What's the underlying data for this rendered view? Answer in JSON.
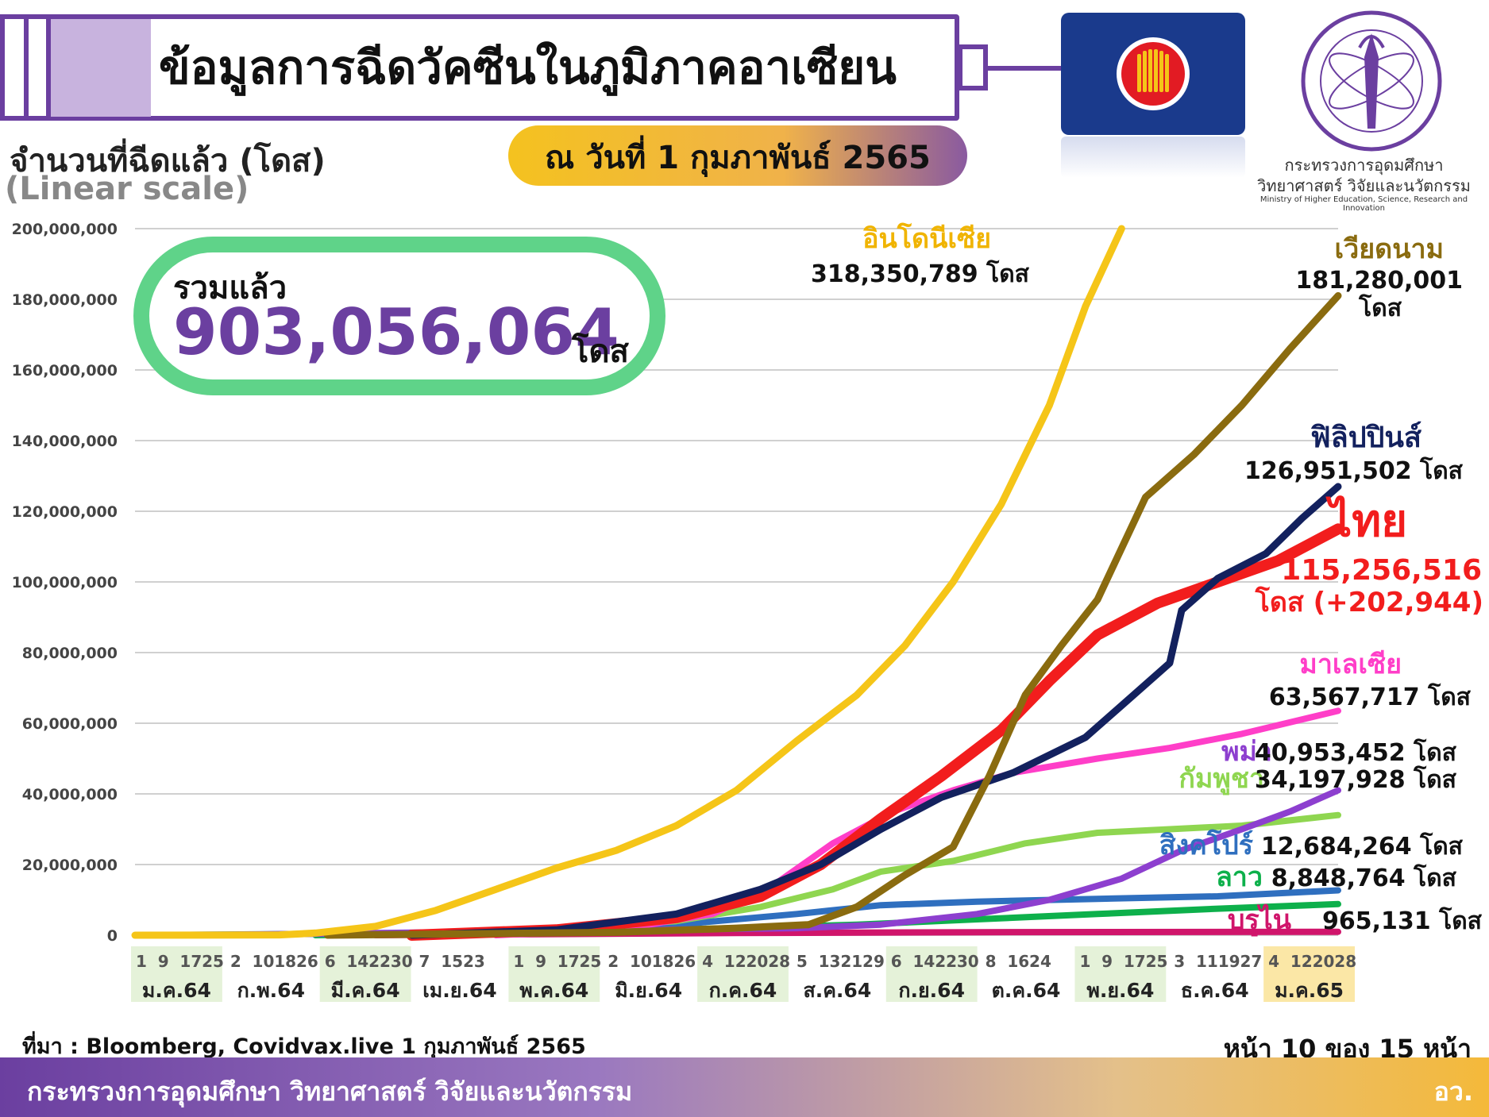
{
  "header": {
    "title": "ข้อมูลการฉีดวัคซีนในภูมิภาคอาเซียน",
    "date": "ณ วันที่ 1 กุมภาพันธ์ 2565"
  },
  "ministry": {
    "name_th_line1": "กระทรวงการอุดมศึกษา",
    "name_th_line2": "วิทยาศาสตร์ วิจัยและนวัตกรรม",
    "name_en": "Ministry of Higher Education, Science, Research and Innovation"
  },
  "total": {
    "label": "รวมแล้ว",
    "value": "903,056,064",
    "unit": "โดส"
  },
  "footer": {
    "source": "ที่มา : Bloomberg, Covidvax.live 1 กุมภาพันธ์ 2565",
    "page": "หน้า 10 ของ 15 หน้า",
    "org": "กระทรวงการอุดมศึกษา วิทยาศาสตร์ วิจัยและนวัตกรรม",
    "org_short": "อว."
  },
  "colors": {
    "accent_purple": "#6b3fa0",
    "total_border": "#5fd389",
    "asean_blue": "#1a3a8c"
  },
  "chart_data": {
    "type": "line",
    "ylabel": "จำนวนที่ฉีดแล้ว (โดส)",
    "ylabel_sub": "(Linear scale)",
    "ylim": [
      0,
      200000000
    ],
    "yticks": [
      0,
      20000000,
      40000000,
      60000000,
      80000000,
      100000000,
      120000000,
      140000000,
      160000000,
      180000000,
      200000000
    ],
    "ytick_labels": [
      "0",
      "20,000,000",
      "40,000,000",
      "60,000,000",
      "80,000,000",
      "100,000,000",
      "120,000,000",
      "140,000,000",
      "160,000,000",
      "180,000,000",
      "200,000,000"
    ],
    "grid": true,
    "months": [
      {
        "label": "ม.ค.64",
        "days": [
          "1",
          "9",
          "17",
          "25"
        ],
        "highlight": "green"
      },
      {
        "label": "ก.พ.64",
        "days": [
          "2",
          "10",
          "18",
          "26"
        ],
        "highlight": "none"
      },
      {
        "label": "มี.ค.64",
        "days": [
          "6",
          "14",
          "22",
          "30"
        ],
        "highlight": "green"
      },
      {
        "label": "เม.ย.64",
        "days": [
          "7",
          "15",
          "23"
        ],
        "highlight": "none"
      },
      {
        "label": "พ.ค.64",
        "days": [
          "1",
          "9",
          "17",
          "25"
        ],
        "highlight": "green"
      },
      {
        "label": "มิ.ย.64",
        "days": [
          "2",
          "10",
          "18",
          "26"
        ],
        "highlight": "none"
      },
      {
        "label": "ก.ค.64",
        "days": [
          "4",
          "12",
          "20",
          "28"
        ],
        "highlight": "green"
      },
      {
        "label": "ส.ค.64",
        "days": [
          "5",
          "13",
          "21",
          "29"
        ],
        "highlight": "none"
      },
      {
        "label": "ก.ย.64",
        "days": [
          "6",
          "14",
          "22",
          "30"
        ],
        "highlight": "green"
      },
      {
        "label": "ต.ค.64",
        "days": [
          "8",
          "16",
          "24"
        ],
        "highlight": "none"
      },
      {
        "label": "พ.ย.64",
        "days": [
          "1",
          "9",
          "17",
          "25"
        ],
        "highlight": "green"
      },
      {
        "label": "ธ.ค.64",
        "days": [
          "3",
          "11",
          "19",
          "27"
        ],
        "highlight": "none"
      },
      {
        "label": "ม.ค.65",
        "days": [
          "4",
          "12",
          "20",
          "28"
        ],
        "highlight": "yellow"
      }
    ],
    "series": [
      {
        "name": "อินโดนีเซีย",
        "latest": "318,350,789",
        "unit": "โดส",
        "color": "#f5c518",
        "width": 9,
        "points": [
          [
            0,
            0
          ],
          [
            0.12,
            0.1
          ],
          [
            0.15,
            0.6
          ],
          [
            0.2,
            2.5
          ],
          [
            0.25,
            7
          ],
          [
            0.3,
            13
          ],
          [
            0.35,
            19
          ],
          [
            0.4,
            24
          ],
          [
            0.45,
            31
          ],
          [
            0.5,
            41
          ],
          [
            0.55,
            55
          ],
          [
            0.6,
            68
          ],
          [
            0.64,
            82
          ],
          [
            0.68,
            100
          ],
          [
            0.72,
            122
          ],
          [
            0.76,
            150
          ],
          [
            0.79,
            178
          ],
          [
            0.82,
            200
          ]
        ]
      },
      {
        "name": "เวียดนาม",
        "latest": "181,280,001",
        "unit": "โดส",
        "color": "#8a6b0f",
        "width": 9,
        "points": [
          [
            0.16,
            0
          ],
          [
            0.4,
            0.8
          ],
          [
            0.5,
            2
          ],
          [
            0.56,
            3
          ],
          [
            0.6,
            8
          ],
          [
            0.64,
            17
          ],
          [
            0.68,
            25
          ],
          [
            0.71,
            45
          ],
          [
            0.74,
            68
          ],
          [
            0.77,
            82
          ],
          [
            0.8,
            95
          ],
          [
            0.84,
            124
          ],
          [
            0.88,
            136
          ],
          [
            0.92,
            150
          ],
          [
            0.96,
            166
          ],
          [
            1.0,
            181
          ]
        ]
      },
      {
        "name": "ฟิลิปปินส์",
        "latest": "126,951,502",
        "unit": "โดส",
        "color": "#13215e",
        "width": 9,
        "points": [
          [
            0.23,
            0
          ],
          [
            0.35,
            1.5
          ],
          [
            0.45,
            6
          ],
          [
            0.52,
            13
          ],
          [
            0.57,
            20
          ],
          [
            0.62,
            30
          ],
          [
            0.67,
            39
          ],
          [
            0.73,
            46
          ],
          [
            0.79,
            56
          ],
          [
            0.83,
            68
          ],
          [
            0.86,
            77
          ],
          [
            0.87,
            92
          ],
          [
            0.9,
            101
          ],
          [
            0.94,
            108
          ],
          [
            0.97,
            118
          ],
          [
            1.0,
            127
          ]
        ]
      },
      {
        "name": "ไทย",
        "latest": "115,256,516",
        "unit": "โดส (+202,944)",
        "color": "#f21d1d",
        "width": 14,
        "points": [
          [
            0.23,
            0
          ],
          [
            0.35,
            1.5
          ],
          [
            0.45,
            5
          ],
          [
            0.52,
            11
          ],
          [
            0.57,
            20
          ],
          [
            0.62,
            33
          ],
          [
            0.67,
            45
          ],
          [
            0.72,
            58
          ],
          [
            0.76,
            72
          ],
          [
            0.8,
            85
          ],
          [
            0.85,
            94
          ],
          [
            0.9,
            100
          ],
          [
            0.95,
            106
          ],
          [
            1.0,
            115
          ]
        ]
      },
      {
        "name": "มาเลเซีย",
        "latest": "63,567,717",
        "unit": "โดส",
        "color": "#ff3ec8",
        "width": 8,
        "points": [
          [
            0.3,
            0
          ],
          [
            0.4,
            1.5
          ],
          [
            0.48,
            6
          ],
          [
            0.53,
            14
          ],
          [
            0.58,
            26
          ],
          [
            0.63,
            35
          ],
          [
            0.68,
            41
          ],
          [
            0.73,
            46
          ],
          [
            0.8,
            50
          ],
          [
            0.86,
            53
          ],
          [
            0.92,
            57
          ],
          [
            1.0,
            63.5
          ]
        ]
      },
      {
        "name": "พม่า",
        "latest": "40,953,452",
        "unit": "โดส",
        "color": "#8d3fcf",
        "width": 8,
        "points": [
          [
            0.05,
            0
          ],
          [
            0.55,
            2
          ],
          [
            0.62,
            3
          ],
          [
            0.7,
            6
          ],
          [
            0.76,
            10
          ],
          [
            0.82,
            16
          ],
          [
            0.87,
            24
          ],
          [
            0.92,
            30
          ],
          [
            0.96,
            35
          ],
          [
            1.0,
            41
          ]
        ]
      },
      {
        "name": "กัมพูชา",
        "latest": "34,197,928",
        "unit": "โดส",
        "color": "#8fd650",
        "width": 8,
        "points": [
          [
            0.18,
            0
          ],
          [
            0.35,
            1.5
          ],
          [
            0.45,
            4
          ],
          [
            0.52,
            8
          ],
          [
            0.58,
            13
          ],
          [
            0.62,
            18
          ],
          [
            0.68,
            21
          ],
          [
            0.74,
            26
          ],
          [
            0.8,
            29
          ],
          [
            0.86,
            30
          ],
          [
            0.92,
            31
          ],
          [
            1.0,
            34
          ]
        ]
      },
      {
        "name": "สิงคโปร์",
        "latest": "12,684,264",
        "unit": "โดส",
        "color": "#2f6fbf",
        "width": 8,
        "points": [
          [
            0,
            0
          ],
          [
            0.3,
            0.8
          ],
          [
            0.45,
            3
          ],
          [
            0.55,
            6
          ],
          [
            0.62,
            8.5
          ],
          [
            0.7,
            9.5
          ],
          [
            0.8,
            10.3
          ],
          [
            0.9,
            11
          ],
          [
            1.0,
            12.7
          ]
        ]
      },
      {
        "name": "ลาว",
        "latest": "8,848,764",
        "unit": "โดส",
        "color": "#0db04b",
        "width": 8,
        "points": [
          [
            0.15,
            0
          ],
          [
            0.35,
            1
          ],
          [
            0.5,
            2
          ],
          [
            0.6,
            3
          ],
          [
            0.7,
            4.5
          ],
          [
            0.8,
            6
          ],
          [
            0.9,
            7.5
          ],
          [
            1.0,
            8.8
          ]
        ]
      },
      {
        "name": "บรูไน",
        "latest": "965,131",
        "unit": "โดส",
        "color": "#d0156b",
        "width": 8,
        "points": [
          [
            0.2,
            0
          ],
          [
            0.5,
            0.6
          ],
          [
            0.7,
            0.85
          ],
          [
            1.0,
            0.97
          ]
        ]
      }
    ]
  }
}
